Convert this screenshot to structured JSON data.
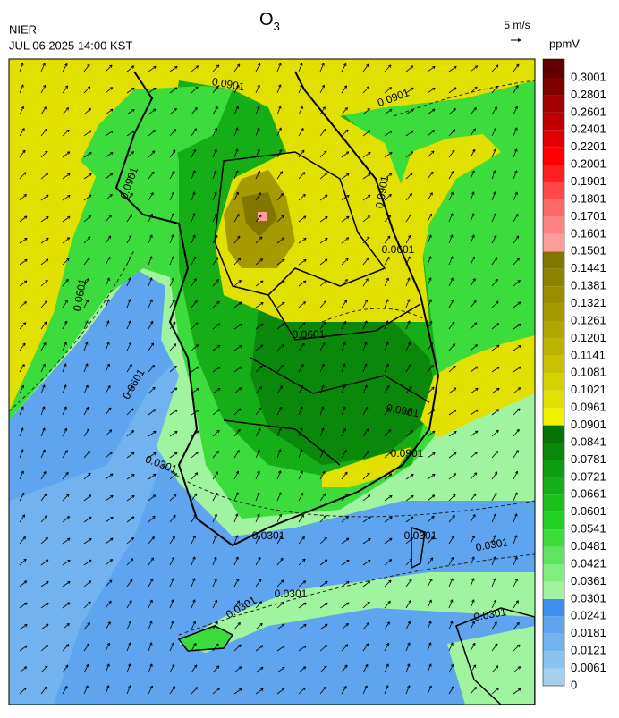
{
  "header": {
    "agency": "NIER",
    "timestamp": "JUL 06 2025 14:00 KST",
    "title": {
      "main": "O",
      "subscript": "3"
    },
    "wind_reference": "5 m/s"
  },
  "colorbar": {
    "unit": "ppmV",
    "levels": [
      0,
      0.0061,
      0.0121,
      0.0181,
      0.0241,
      0.0301,
      0.0361,
      0.0421,
      0.0481,
      0.0541,
      0.0601,
      0.0661,
      0.0721,
      0.0781,
      0.0841,
      0.0901,
      0.0961,
      0.1021,
      0.1081,
      0.1141,
      0.1201,
      0.1261,
      0.1321,
      0.1381,
      0.1441,
      0.1501,
      0.1601,
      0.1701,
      0.1801,
      0.1901,
      0.2001,
      0.2201,
      0.2401,
      0.2601,
      0.2801,
      0.3001
    ],
    "colors": [
      "#a6d0ee",
      "#8cc2ee",
      "#72b2ee",
      "#5ea4ee",
      "#3f8ff0",
      "#a0f4a0",
      "#80ee80",
      "#5ee45e",
      "#3cdc3c",
      "#22d022",
      "#1cc01c",
      "#16ae16",
      "#109c10",
      "#0a880a",
      "#067406",
      "#f2f200",
      "#e2e000",
      "#d6d200",
      "#cac200",
      "#beb400",
      "#b2a600",
      "#a69a00",
      "#9a8e00",
      "#8e8200",
      "#827600",
      "#ff9c9c",
      "#ff8484",
      "#ff6868",
      "#ff4848",
      "#ff2020",
      "#ff0000",
      "#e00000",
      "#c00000",
      "#a00000",
      "#800000",
      "#600000"
    ]
  },
  "contour_labels": [
    "0.0901",
    "0.0901",
    "0.0901",
    "0.0601",
    "0.0601",
    "0.0901",
    "0.0601",
    "0.0301",
    "0.0301",
    "0.0301",
    "0.0301",
    "0.0301",
    "0.0301",
    "0.0301",
    "0.0901",
    "0.0901",
    "0.0601"
  ]
}
